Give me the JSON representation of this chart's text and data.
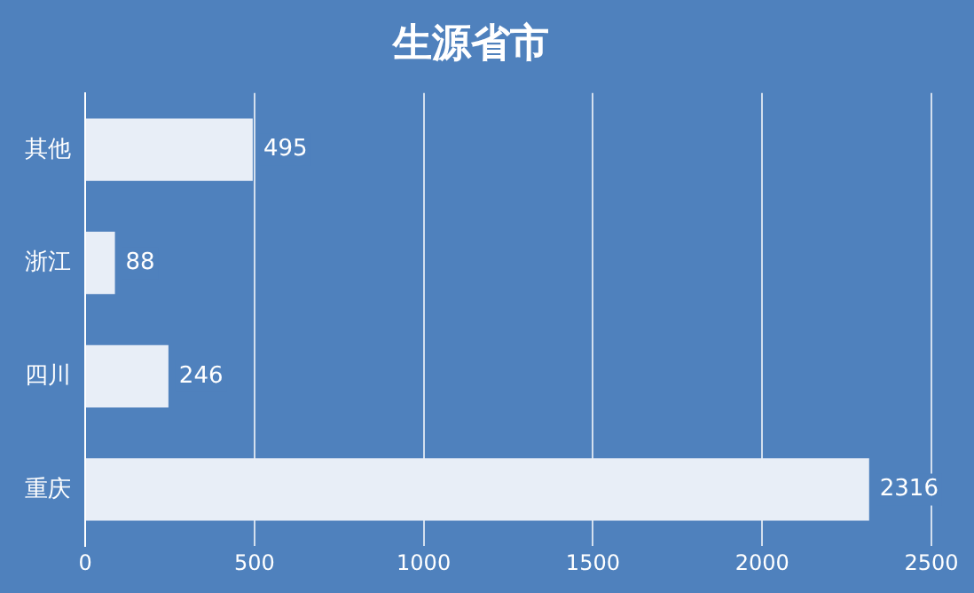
{
  "chart_data": {
    "type": "bar",
    "orientation": "horizontal",
    "title": "生源省市",
    "categories": [
      "其他",
      "浙江",
      "四川",
      "重庆"
    ],
    "values": [
      495,
      88,
      246,
      2316
    ],
    "color": "#e8eef7",
    "xlim": [
      0,
      2500
    ],
    "xticks": [
      0,
      500,
      1000,
      1500,
      2000,
      2500
    ],
    "grid": "x",
    "legend": false,
    "data_labels": true
  }
}
